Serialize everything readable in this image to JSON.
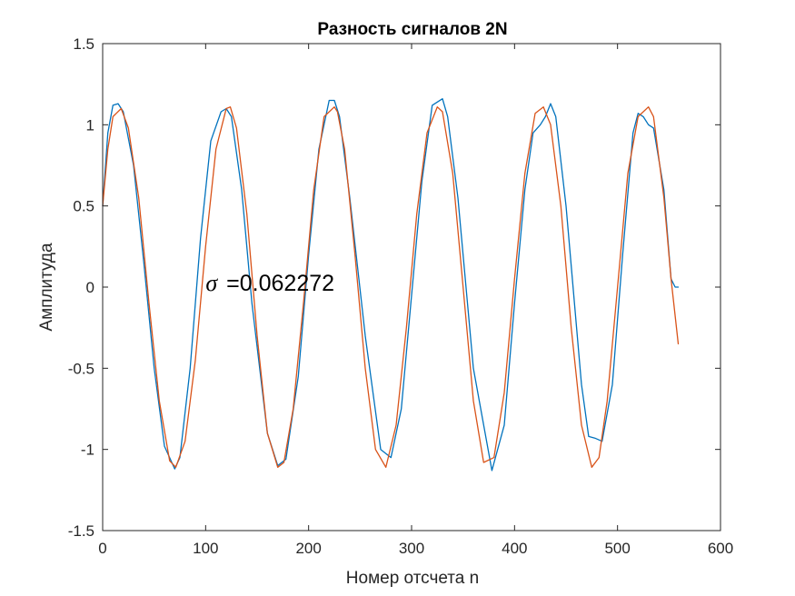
{
  "chart_data": {
    "type": "line",
    "title": "Разность сигналов 2N",
    "xlabel": "Номер отсчета n",
    "ylabel": "Амплитуда",
    "xlim": [
      0,
      600
    ],
    "ylim": [
      -1.5,
      1.5
    ],
    "xticks": [
      0,
      100,
      200,
      300,
      400,
      500,
      600
    ],
    "xtick_labels": [
      "0",
      "100",
      "200",
      "300",
      "400",
      "500",
      "600"
    ],
    "yticks": [
      -1.5,
      -1,
      -0.5,
      0,
      0.5,
      1,
      1.5
    ],
    "ytick_labels": [
      "-1.5",
      "-1",
      "-0.5",
      "0",
      "0.5",
      "1",
      "1.5"
    ],
    "grid": false,
    "annotation": {
      "symbol": "σ",
      "text": "=0.062272",
      "x": 100,
      "y": 0
    },
    "series": [
      {
        "color": "#0072BD",
        "x": [
          0,
          5,
          10,
          15,
          20,
          30,
          40,
          50,
          60,
          70,
          75,
          85,
          95,
          105,
          115,
          120,
          125,
          135,
          145,
          160,
          170,
          178,
          190,
          200,
          210,
          220,
          225,
          230,
          240,
          255,
          270,
          280,
          290,
          300,
          310,
          320,
          330,
          335,
          345,
          360,
          378,
          390,
          400,
          410,
          418,
          425,
          430,
          435,
          440,
          450,
          465,
          472,
          478,
          485,
          495,
          505,
          515,
          520,
          525,
          530,
          535,
          545,
          552,
          556,
          559
        ],
        "y": [
          0.5,
          0.95,
          1.12,
          1.13,
          1.08,
          0.75,
          0.15,
          -0.5,
          -0.98,
          -1.12,
          -1.05,
          -0.5,
          0.3,
          0.9,
          1.08,
          1.1,
          1.05,
          0.6,
          -0.1,
          -0.9,
          -1.1,
          -1.06,
          -0.55,
          0.2,
          0.85,
          1.15,
          1.15,
          1.05,
          0.55,
          -0.3,
          -1.0,
          -1.05,
          -0.75,
          -0.05,
          0.65,
          1.12,
          1.16,
          1.05,
          0.55,
          -0.5,
          -1.13,
          -0.85,
          -0.1,
          0.6,
          0.95,
          1.0,
          1.05,
          1.13,
          1.05,
          0.5,
          -0.6,
          -0.92,
          -0.93,
          -0.95,
          -0.6,
          0.2,
          0.95,
          1.07,
          1.05,
          1.0,
          0.98,
          0.6,
          0.05,
          0.0,
          0.0
        ]
      },
      {
        "color": "#D95319",
        "x": [
          0,
          5,
          10,
          18,
          25,
          35,
          45,
          55,
          65,
          71,
          80,
          90,
          100,
          110,
          120,
          124,
          130,
          140,
          150,
          160,
          170,
          176,
          185,
          195,
          205,
          215,
          225,
          228,
          235,
          245,
          255,
          265,
          275,
          285,
          295,
          305,
          315,
          325,
          330,
          340,
          350,
          360,
          370,
          380,
          390,
          400,
          410,
          420,
          428,
          435,
          445,
          455,
          465,
          475,
          482,
          490,
          500,
          510,
          520,
          530,
          535,
          545,
          552,
          559
        ],
        "y": [
          0.5,
          0.85,
          1.05,
          1.1,
          0.98,
          0.55,
          -0.1,
          -0.7,
          -1.07,
          -1.11,
          -0.95,
          -0.45,
          0.25,
          0.85,
          1.1,
          1.11,
          0.98,
          0.45,
          -0.3,
          -0.9,
          -1.11,
          -1.08,
          -0.75,
          -0.1,
          0.6,
          1.05,
          1.11,
          1.08,
          0.85,
          0.2,
          -0.5,
          -1.0,
          -1.11,
          -0.85,
          -0.25,
          0.45,
          0.95,
          1.11,
          1.08,
          0.7,
          0.0,
          -0.7,
          -1.08,
          -1.05,
          -0.65,
          0.05,
          0.7,
          1.07,
          1.11,
          1.0,
          0.5,
          -0.25,
          -0.85,
          -1.11,
          -1.05,
          -0.7,
          0.0,
          0.7,
          1.05,
          1.11,
          1.05,
          0.55,
          0.05,
          -0.35
        ]
      }
    ]
  }
}
